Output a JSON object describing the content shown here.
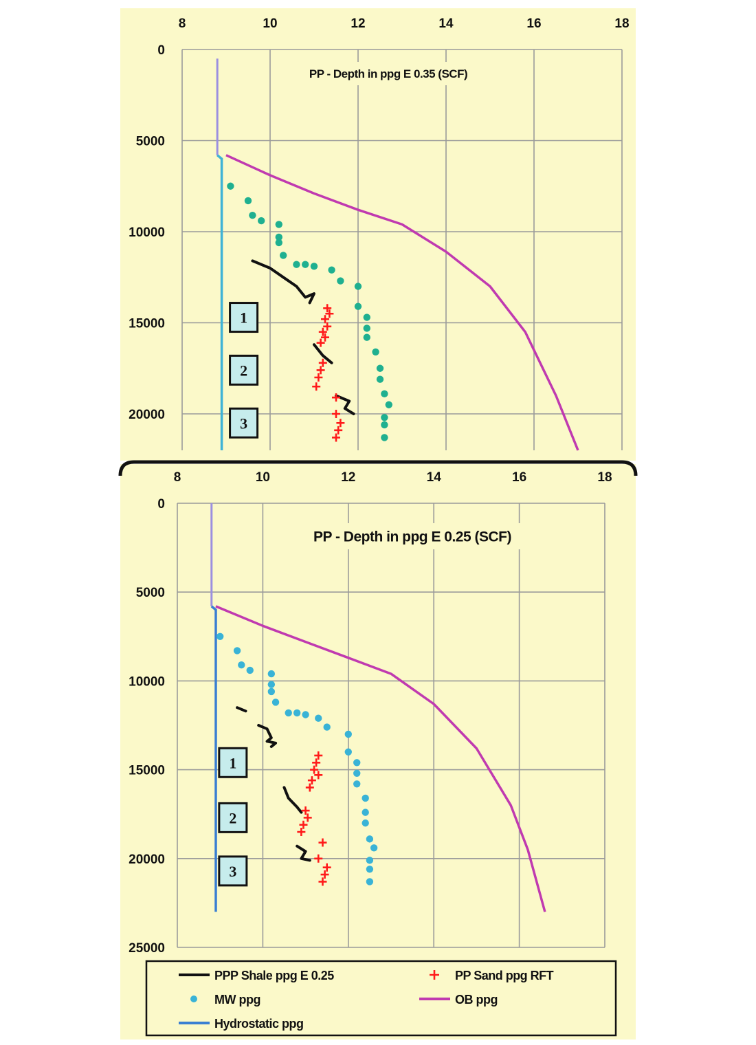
{
  "colors": {
    "background": "#fbf9c9",
    "gridline": "#9a9a9a",
    "shale": "#111111",
    "sand": "#ff1a1a",
    "mw_top": "#1fb090",
    "mw_bottom": "#39b3d6",
    "ob": "#c03ab0",
    "hydro_upper": "#9b8fe0",
    "hydro_top": "#3fb3d6",
    "hydro_bottom": "#3a7fd2",
    "label_box": "#c6ecec"
  },
  "chart_data": [
    {
      "type": "scatter",
      "title": "PP - Depth in ppg E 0.35 (SCF)",
      "xlim": [
        8,
        18
      ],
      "x_ticks": [
        "8",
        "10",
        "12",
        "14",
        "16",
        "18"
      ],
      "ylim": [
        0,
        22000
      ],
      "y_ticks": [
        "0",
        "5000",
        "10000",
        "15000",
        "20000"
      ],
      "y_tick_values": [
        0,
        5000,
        10000,
        15000,
        20000
      ],
      "grid": true,
      "zone_labels": [
        {
          "text": "1",
          "x": 9.4,
          "depth": 14700
        },
        {
          "text": "2",
          "x": 9.4,
          "depth": 17600
        },
        {
          "text": "3",
          "x": 9.4,
          "depth": 20500
        }
      ],
      "series": [
        {
          "kind": "hydro_upper",
          "points": [
            [
              8.8,
              500
            ],
            [
              8.8,
              5800
            ]
          ]
        },
        {
          "kind": "hydro",
          "points": [
            [
              8.8,
              5800
            ],
            [
              8.9,
              6000
            ],
            [
              8.9,
              22000
            ]
          ]
        },
        {
          "kind": "ob",
          "points": [
            [
              9.0,
              5800
            ],
            [
              10.0,
              6900
            ],
            [
              11.0,
              7900
            ],
            [
              12.0,
              8800
            ],
            [
              13.0,
              9600
            ],
            [
              14.0,
              11100
            ],
            [
              15.0,
              13000
            ],
            [
              15.8,
              15500
            ],
            [
              16.5,
              19000
            ],
            [
              17.0,
              22000
            ]
          ]
        },
        {
          "kind": "shale",
          "segments": [
            [
              [
                9.6,
                11600
              ],
              [
                10.0,
                12000
              ],
              [
                10.3,
                12500
              ],
              [
                10.6,
                13000
              ],
              [
                10.8,
                13600
              ],
              [
                11.0,
                13400
              ],
              [
                10.9,
                13900
              ]
            ],
            [
              [
                11.0,
                16200
              ],
              [
                11.2,
                16800
              ],
              [
                11.4,
                17200
              ]
            ],
            [
              [
                11.5,
                19000
              ],
              [
                11.8,
                19300
              ],
              [
                11.7,
                19700
              ],
              [
                11.9,
                20000
              ]
            ]
          ]
        },
        {
          "kind": "sand",
          "points": [
            [
              11.3,
              14200
            ],
            [
              11.35,
              14500
            ],
            [
              11.25,
              14800
            ],
            [
              11.3,
              15200
            ],
            [
              11.2,
              15500
            ],
            [
              11.25,
              15800
            ],
            [
              11.15,
              16100
            ],
            [
              11.2,
              17200
            ],
            [
              11.15,
              17600
            ],
            [
              11.1,
              18000
            ],
            [
              11.05,
              18500
            ],
            [
              11.5,
              19100
            ],
            [
              11.5,
              20000
            ],
            [
              11.6,
              20500
            ],
            [
              11.55,
              20900
            ],
            [
              11.5,
              21300
            ]
          ]
        },
        {
          "kind": "mw",
          "points": [
            [
              9.1,
              7500
            ],
            [
              9.5,
              8300
            ],
            [
              9.6,
              9100
            ],
            [
              9.8,
              9400
            ],
            [
              10.2,
              9600
            ],
            [
              10.2,
              10300
            ],
            [
              10.2,
              10600
            ],
            [
              10.3,
              11300
            ],
            [
              10.6,
              11800
            ],
            [
              10.8,
              11800
            ],
            [
              11.0,
              11900
            ],
            [
              11.4,
              12100
            ],
            [
              11.6,
              12700
            ],
            [
              12.0,
              13000
            ],
            [
              12.0,
              14100
            ],
            [
              12.2,
              14700
            ],
            [
              12.2,
              15300
            ],
            [
              12.2,
              15800
            ],
            [
              12.4,
              16600
            ],
            [
              12.5,
              17500
            ],
            [
              12.5,
              18100
            ],
            [
              12.6,
              18900
            ],
            [
              12.7,
              19500
            ],
            [
              12.6,
              20200
            ],
            [
              12.6,
              20600
            ],
            [
              12.6,
              21300
            ]
          ]
        }
      ]
    },
    {
      "type": "scatter",
      "title": "PP - Depth in ppg E 0.25 (SCF)",
      "xlim": [
        8,
        18
      ],
      "x_ticks": [
        "8",
        "10",
        "12",
        "14",
        "16",
        "18"
      ],
      "ylim": [
        0,
        25000
      ],
      "y_ticks": [
        "0",
        "5000",
        "10000",
        "15000",
        "20000",
        "25000"
      ],
      "y_tick_values": [
        0,
        5000,
        10000,
        15000,
        20000,
        25000
      ],
      "grid": true,
      "zone_labels": [
        {
          "text": "1",
          "x": 9.3,
          "depth": 14600
        },
        {
          "text": "2",
          "x": 9.3,
          "depth": 17700
        },
        {
          "text": "3",
          "x": 9.3,
          "depth": 20700
        }
      ],
      "series": [
        {
          "kind": "hydro_upper",
          "points": [
            [
              8.8,
              0
            ],
            [
              8.8,
              5800
            ]
          ]
        },
        {
          "kind": "hydro",
          "points": [
            [
              8.8,
              5800
            ],
            [
              8.9,
              6000
            ],
            [
              8.9,
              23000
            ]
          ]
        },
        {
          "kind": "ob",
          "points": [
            [
              8.9,
              5800
            ],
            [
              10.0,
              6900
            ],
            [
              11.0,
              7800
            ],
            [
              12.0,
              8700
            ],
            [
              13.0,
              9600
            ],
            [
              14.0,
              11300
            ],
            [
              15.0,
              13800
            ],
            [
              15.8,
              17000
            ],
            [
              16.2,
              19500
            ],
            [
              16.6,
              23000
            ]
          ]
        },
        {
          "kind": "shale",
          "segments": [
            [
              [
                9.4,
                11500
              ],
              [
                9.6,
                11700
              ]
            ],
            [
              [
                9.9,
                12500
              ],
              [
                10.1,
                12700
              ],
              [
                10.2,
                13200
              ],
              [
                10.1,
                13400
              ],
              [
                10.3,
                13500
              ],
              [
                10.2,
                13700
              ]
            ],
            [
              [
                10.5,
                16000
              ],
              [
                10.6,
                16600
              ],
              [
                10.8,
                17100
              ],
              [
                10.9,
                17400
              ]
            ],
            [
              [
                10.8,
                19300
              ],
              [
                11.0,
                19600
              ],
              [
                10.9,
                20000
              ],
              [
                11.1,
                20100
              ]
            ]
          ]
        },
        {
          "kind": "sand",
          "points": [
            [
              11.3,
              14200
            ],
            [
              11.25,
              14600
            ],
            [
              11.2,
              15000
            ],
            [
              11.3,
              15300
            ],
            [
              11.15,
              15600
            ],
            [
              11.1,
              16000
            ],
            [
              11.0,
              17300
            ],
            [
              11.05,
              17700
            ],
            [
              10.95,
              18100
            ],
            [
              10.9,
              18500
            ],
            [
              11.4,
              19100
            ],
            [
              11.3,
              20000
            ],
            [
              11.5,
              20500
            ],
            [
              11.45,
              20900
            ],
            [
              11.4,
              21300
            ]
          ]
        },
        {
          "kind": "mw",
          "points": [
            [
              9.0,
              7500
            ],
            [
              9.4,
              8300
            ],
            [
              9.5,
              9100
            ],
            [
              9.7,
              9400
            ],
            [
              10.2,
              9600
            ],
            [
              10.2,
              10200
            ],
            [
              10.2,
              10600
            ],
            [
              10.3,
              11200
            ],
            [
              10.6,
              11800
            ],
            [
              10.8,
              11800
            ],
            [
              11.0,
              11900
            ],
            [
              11.3,
              12100
            ],
            [
              11.5,
              12600
            ],
            [
              12.0,
              13000
            ],
            [
              12.0,
              14000
            ],
            [
              12.2,
              14600
            ],
            [
              12.2,
              15200
            ],
            [
              12.2,
              15800
            ],
            [
              12.4,
              16600
            ],
            [
              12.4,
              17400
            ],
            [
              12.4,
              18000
            ],
            [
              12.5,
              18900
            ],
            [
              12.6,
              19400
            ],
            [
              12.5,
              20100
            ],
            [
              12.5,
              20600
            ],
            [
              12.5,
              21300
            ]
          ]
        }
      ]
    }
  ],
  "legend": {
    "placement": "bottom",
    "items": [
      {
        "label": "PPP Shale ppg E 0.25",
        "symbol": "line",
        "color_key": "shale"
      },
      {
        "label": "PP Sand ppg RFT",
        "symbol": "plus",
        "color_key": "sand"
      },
      {
        "label": "MW ppg",
        "symbol": "dot",
        "color_key": "mw_bottom"
      },
      {
        "label": "OB ppg",
        "symbol": "line",
        "color_key": "ob"
      },
      {
        "label": "Hydrostatic ppg",
        "symbol": "line",
        "color_key": "hydro_bottom"
      }
    ]
  }
}
